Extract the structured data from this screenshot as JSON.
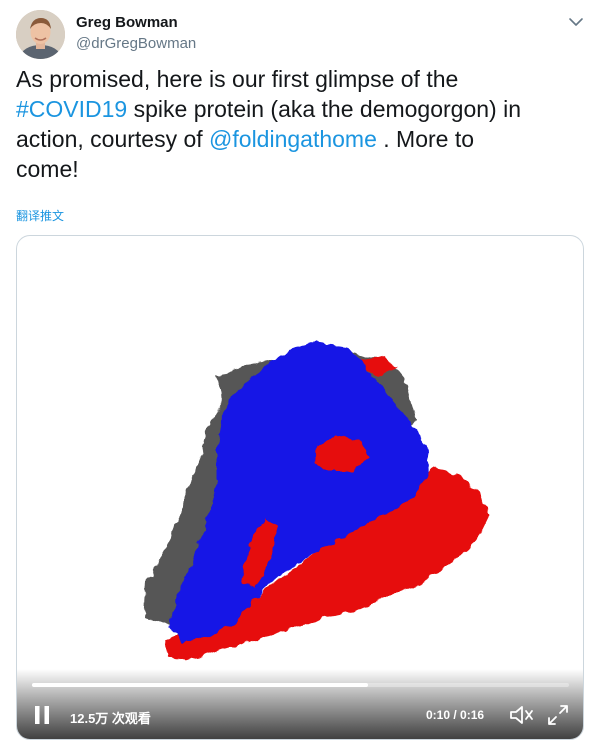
{
  "author": {
    "name": "Greg Bowman",
    "handle": "@drGregBowman"
  },
  "tweet": {
    "line1": "As promised, here is our first glimpse of the",
    "hashtag": "#COVID19",
    "line2_rest": " spike protein (aka the demogorgon) in",
    "line3_start": "action, courtesy of ",
    "mention": "@foldingathome",
    "line3_end": " . More to",
    "line4": "come!",
    "translate_label": "翻译推文"
  },
  "video": {
    "views_label": "12.5万 次观看",
    "time_label": "0:10 / 0:16",
    "progress_fraction": 0.625
  },
  "icons": {
    "caret": "chevron-down-icon",
    "play_pause": "pause-icon",
    "volume": "volume-icon",
    "fullscreen": "fullscreen-icon"
  },
  "colors": {
    "link": "#1b95e0",
    "protein_blue": "#1010e0",
    "protein_red": "#e01010",
    "protein_gray": "#555555"
  }
}
